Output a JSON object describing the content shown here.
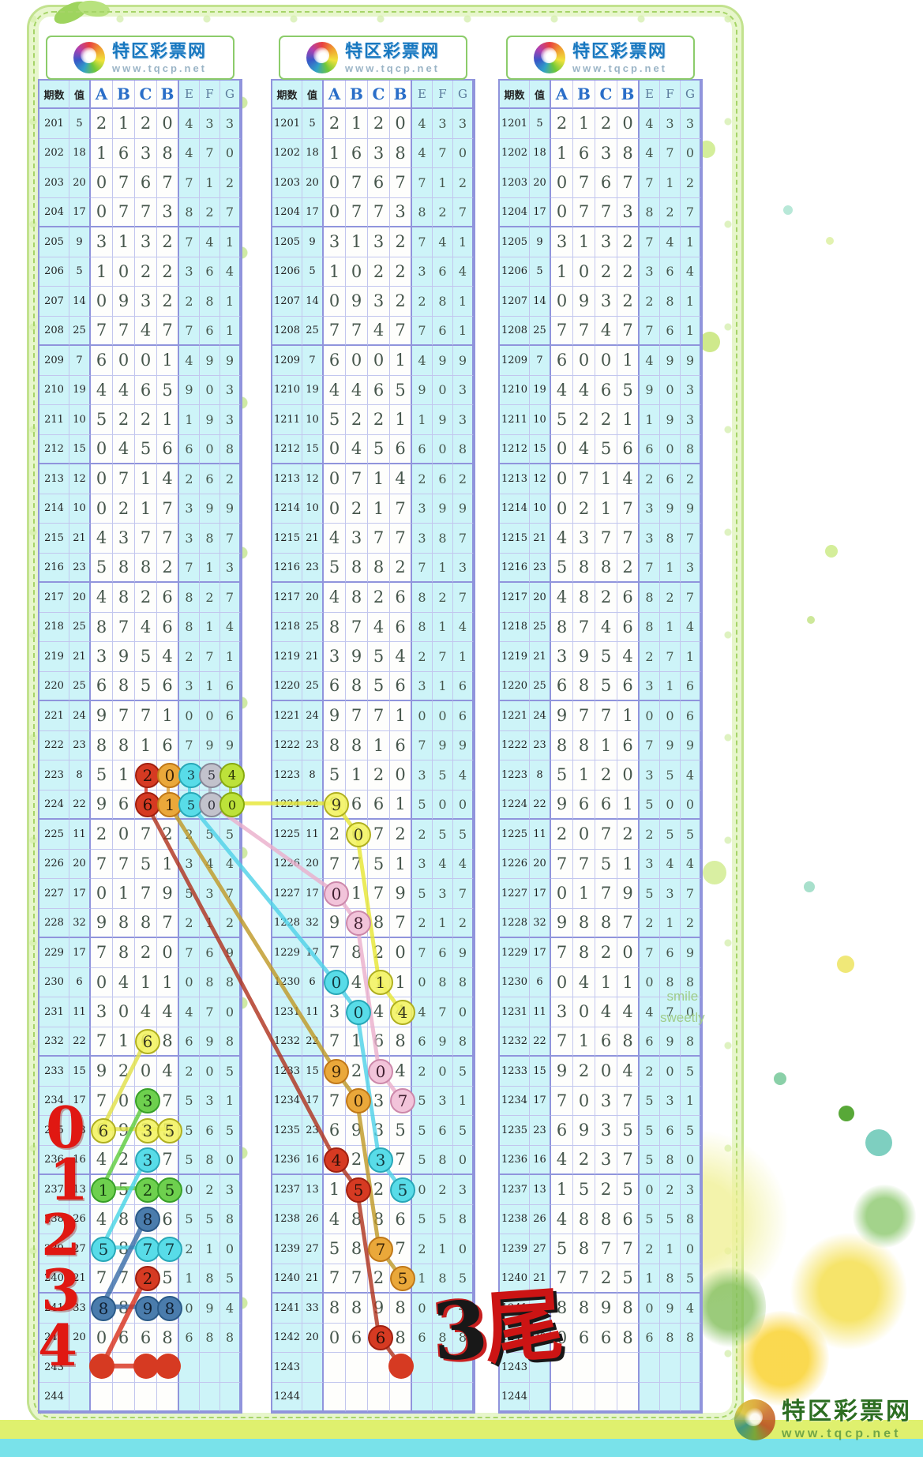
{
  "site": {
    "name": "特区彩票网",
    "url": "www.tqcp.net"
  },
  "decor": {
    "smile_line1": "smile",
    "smile_line2": "sweetly"
  },
  "footer": {
    "brand": "特区彩票网",
    "url": "www.tqcp.net"
  },
  "annotations": {
    "big_label": "3尾",
    "margin_digits": [
      "0",
      "1",
      "2",
      "3",
      "4"
    ]
  },
  "table": {
    "headers": [
      "期数",
      "值",
      "A",
      "B",
      "C",
      "B",
      "E",
      "F",
      "G"
    ],
    "panels": [
      {
        "start": 201
      },
      {
        "start": 1201
      },
      {
        "start": 1201
      }
    ],
    "rows": [
      {
        "v": "5",
        "c": [
          "2",
          "1",
          "2",
          "0",
          "4",
          "3",
          "3"
        ]
      },
      {
        "v": "18",
        "c": [
          "1",
          "6",
          "3",
          "8",
          "4",
          "7",
          "0"
        ]
      },
      {
        "v": "20",
        "c": [
          "0",
          "7",
          "6",
          "7",
          "7",
          "1",
          "2"
        ]
      },
      {
        "v": "17",
        "c": [
          "0",
          "7",
          "7",
          "3",
          "8",
          "2",
          "7"
        ]
      },
      {
        "v": "9",
        "c": [
          "3",
          "1",
          "3",
          "2",
          "7",
          "4",
          "1"
        ]
      },
      {
        "v": "5",
        "c": [
          "1",
          "0",
          "2",
          "2",
          "3",
          "6",
          "4"
        ]
      },
      {
        "v": "14",
        "c": [
          "0",
          "9",
          "3",
          "2",
          "2",
          "8",
          "1"
        ]
      },
      {
        "v": "25",
        "c": [
          "7",
          "7",
          "4",
          "7",
          "7",
          "6",
          "1"
        ]
      },
      {
        "v": "7",
        "c": [
          "6",
          "0",
          "0",
          "1",
          "4",
          "9",
          "9"
        ]
      },
      {
        "v": "19",
        "c": [
          "4",
          "4",
          "6",
          "5",
          "9",
          "0",
          "3"
        ]
      },
      {
        "v": "10",
        "c": [
          "5",
          "2",
          "2",
          "1",
          "1",
          "9",
          "3"
        ]
      },
      {
        "v": "15",
        "c": [
          "0",
          "4",
          "5",
          "6",
          "6",
          "0",
          "8"
        ]
      },
      {
        "v": "12",
        "c": [
          "0",
          "7",
          "1",
          "4",
          "2",
          "6",
          "2"
        ]
      },
      {
        "v": "10",
        "c": [
          "0",
          "2",
          "1",
          "7",
          "3",
          "9",
          "9"
        ]
      },
      {
        "v": "21",
        "c": [
          "4",
          "3",
          "7",
          "7",
          "3",
          "8",
          "7"
        ]
      },
      {
        "v": "23",
        "c": [
          "5",
          "8",
          "8",
          "2",
          "7",
          "1",
          "3"
        ]
      },
      {
        "v": "20",
        "c": [
          "4",
          "8",
          "2",
          "6",
          "8",
          "2",
          "7"
        ]
      },
      {
        "v": "25",
        "c": [
          "8",
          "7",
          "4",
          "6",
          "8",
          "1",
          "4"
        ]
      },
      {
        "v": "21",
        "c": [
          "3",
          "9",
          "5",
          "4",
          "2",
          "7",
          "1"
        ]
      },
      {
        "v": "25",
        "c": [
          "6",
          "8",
          "5",
          "6",
          "3",
          "1",
          "6"
        ]
      },
      {
        "v": "24",
        "c": [
          "9",
          "7",
          "7",
          "1",
          "0",
          "0",
          "6"
        ]
      },
      {
        "v": "23",
        "c": [
          "8",
          "8",
          "1",
          "6",
          "7",
          "9",
          "9"
        ]
      },
      {
        "v": "8",
        "c": [
          "5",
          "1",
          "2",
          "0",
          "3",
          "5",
          "4"
        ]
      },
      {
        "v": "22",
        "c": [
          "9",
          "6",
          "6",
          "1",
          "5",
          "0",
          "0"
        ]
      },
      {
        "v": "11",
        "c": [
          "2",
          "0",
          "7",
          "2",
          "2",
          "5",
          "5"
        ]
      },
      {
        "v": "20",
        "c": [
          "7",
          "7",
          "5",
          "1",
          "3",
          "4",
          "4"
        ]
      },
      {
        "v": "17",
        "c": [
          "0",
          "1",
          "7",
          "9",
          "5",
          "3",
          "7"
        ]
      },
      {
        "v": "32",
        "c": [
          "9",
          "8",
          "8",
          "7",
          "2",
          "1",
          "2"
        ]
      },
      {
        "v": "17",
        "c": [
          "7",
          "8",
          "2",
          "0",
          "7",
          "6",
          "9"
        ]
      },
      {
        "v": "6",
        "c": [
          "0",
          "4",
          "1",
          "1",
          "0",
          "8",
          "8"
        ]
      },
      {
        "v": "11",
        "c": [
          "3",
          "0",
          "4",
          "4",
          "4",
          "7",
          "0"
        ]
      },
      {
        "v": "22",
        "c": [
          "7",
          "1",
          "6",
          "8",
          "6",
          "9",
          "8"
        ]
      },
      {
        "v": "15",
        "c": [
          "9",
          "2",
          "0",
          "4",
          "2",
          "0",
          "5"
        ]
      },
      {
        "v": "17",
        "c": [
          "7",
          "0",
          "3",
          "7",
          "5",
          "3",
          "1"
        ]
      },
      {
        "v": "23",
        "c": [
          "6",
          "9",
          "3",
          "5",
          "5",
          "6",
          "5"
        ]
      },
      {
        "v": "16",
        "c": [
          "4",
          "2",
          "3",
          "7",
          "5",
          "8",
          "0"
        ]
      },
      {
        "v": "13",
        "c": [
          "1",
          "5",
          "2",
          "5",
          "0",
          "2",
          "3"
        ]
      },
      {
        "v": "26",
        "c": [
          "4",
          "8",
          "8",
          "6",
          "5",
          "5",
          "8"
        ]
      },
      {
        "v": "27",
        "c": [
          "5",
          "8",
          "7",
          "7",
          "2",
          "1",
          "0"
        ]
      },
      {
        "v": "21",
        "c": [
          "7",
          "7",
          "2",
          "5",
          "1",
          "8",
          "5"
        ]
      },
      {
        "v": "33",
        "c": [
          "8",
          "8",
          "9",
          "8",
          "0",
          "9",
          "4"
        ]
      },
      {
        "v": "20",
        "c": [
          "0",
          "6",
          "6",
          "8",
          "6",
          "8",
          "8"
        ]
      },
      {
        "v": "",
        "c": [
          "",
          "",
          "",
          "",
          "",
          "",
          ""
        ]
      },
      {
        "v": "",
        "c": [
          "",
          "",
          "",
          "",
          "",
          "",
          ""
        ]
      }
    ]
  },
  "palette": {
    "red": {
      "fill": "#d63a22",
      "border": "#a02010",
      "text": "#2a1008"
    },
    "orange": {
      "fill": "#eaa83a",
      "border": "#c07818",
      "text": "#3a2408"
    },
    "cyan": {
      "fill": "#58dce8",
      "border": "#28a8b8",
      "text": "#143a40"
    },
    "gray": {
      "fill": "#c2c2cc",
      "border": "#888898",
      "text": "#30303a"
    },
    "ygreen": {
      "fill": "#bde23a",
      "border": "#88aa10",
      "text": "#2a3408"
    },
    "yellow": {
      "fill": "rgba(242,242,96,0.88)",
      "border": "#b0b020",
      "text": "#3a3a20"
    },
    "green": {
      "fill": "#6ed04e",
      "border": "#38a028",
      "text": "#143a10"
    },
    "sblue": {
      "fill": "#4a7cac",
      "border": "#2a5a88",
      "text": "#101f30"
    },
    "pink": {
      "fill": "#f2c4da",
      "border": "#cc88aa",
      "text": "#402030"
    },
    "dot": {
      "fill": "#d63a22",
      "border": "#d63a22",
      "text": ""
    }
  },
  "circles": [
    {
      "panel": 0,
      "row": 22,
      "col": 4,
      "style": "red"
    },
    {
      "panel": 0,
      "row": 22,
      "col": 5,
      "style": "orange"
    },
    {
      "panel": 0,
      "row": 22,
      "col": 6,
      "style": "cyan"
    },
    {
      "panel": 0,
      "row": 22,
      "col": 7,
      "style": "gray"
    },
    {
      "panel": 0,
      "row": 22,
      "col": 8,
      "style": "ygreen"
    },
    {
      "panel": 0,
      "row": 23,
      "col": 4,
      "style": "red"
    },
    {
      "panel": 0,
      "row": 23,
      "col": 5,
      "style": "orange"
    },
    {
      "panel": 0,
      "row": 23,
      "col": 6,
      "style": "cyan"
    },
    {
      "panel": 0,
      "row": 23,
      "col": 7,
      "style": "gray"
    },
    {
      "panel": 0,
      "row": 23,
      "col": 8,
      "style": "ygreen"
    },
    {
      "panel": 0,
      "row": 31,
      "col": 4,
      "style": "yellow"
    },
    {
      "panel": 0,
      "row": 33,
      "col": 4,
      "style": "green"
    },
    {
      "panel": 0,
      "row": 34,
      "col": 2,
      "style": "yellow"
    },
    {
      "panel": 0,
      "row": 34,
      "col": 4,
      "style": "yellow"
    },
    {
      "panel": 0,
      "row": 34,
      "col": 5,
      "style": "yellow"
    },
    {
      "panel": 0,
      "row": 35,
      "col": 4,
      "style": "cyan"
    },
    {
      "panel": 0,
      "row": 36,
      "col": 2,
      "style": "green"
    },
    {
      "panel": 0,
      "row": 36,
      "col": 4,
      "style": "green"
    },
    {
      "panel": 0,
      "row": 36,
      "col": 5,
      "style": "green"
    },
    {
      "panel": 0,
      "row": 37,
      "col": 4,
      "style": "sblue"
    },
    {
      "panel": 0,
      "row": 38,
      "col": 2,
      "style": "cyan"
    },
    {
      "panel": 0,
      "row": 38,
      "col": 4,
      "style": "cyan"
    },
    {
      "panel": 0,
      "row": 38,
      "col": 5,
      "style": "cyan"
    },
    {
      "panel": 0,
      "row": 39,
      "col": 4,
      "style": "red"
    },
    {
      "panel": 0,
      "row": 40,
      "col": 2,
      "style": "sblue"
    },
    {
      "panel": 0,
      "row": 40,
      "col": 4,
      "style": "sblue"
    },
    {
      "panel": 0,
      "row": 40,
      "col": 5,
      "style": "sblue"
    },
    {
      "panel": 0,
      "row": 42,
      "col": 2,
      "style": "dot"
    },
    {
      "panel": 0,
      "row": 42,
      "col": 4,
      "style": "dot"
    },
    {
      "panel": 0,
      "row": 42,
      "col": 5,
      "style": "dot"
    },
    {
      "panel": 1,
      "row": 23,
      "col": 2,
      "style": "yellow"
    },
    {
      "panel": 1,
      "row": 24,
      "col": 3,
      "style": "yellow"
    },
    {
      "panel": 1,
      "row": 26,
      "col": 2,
      "style": "pink"
    },
    {
      "panel": 1,
      "row": 27,
      "col": 3,
      "style": "pink"
    },
    {
      "panel": 1,
      "row": 29,
      "col": 2,
      "style": "cyan"
    },
    {
      "panel": 1,
      "row": 29,
      "col": 4,
      "style": "yellow"
    },
    {
      "panel": 1,
      "row": 30,
      "col": 3,
      "style": "cyan"
    },
    {
      "panel": 1,
      "row": 30,
      "col": 5,
      "style": "yellow"
    },
    {
      "panel": 1,
      "row": 32,
      "col": 2,
      "style": "orange"
    },
    {
      "panel": 1,
      "row": 32,
      "col": 4,
      "style": "pink"
    },
    {
      "panel": 1,
      "row": 33,
      "col": 3,
      "style": "orange"
    },
    {
      "panel": 1,
      "row": 33,
      "col": 5,
      "style": "pink"
    },
    {
      "panel": 1,
      "row": 35,
      "col": 2,
      "style": "red"
    },
    {
      "panel": 1,
      "row": 35,
      "col": 4,
      "style": "cyan"
    },
    {
      "panel": 1,
      "row": 36,
      "col": 3,
      "style": "red"
    },
    {
      "panel": 1,
      "row": 36,
      "col": 5,
      "style": "cyan"
    },
    {
      "panel": 1,
      "row": 38,
      "col": 4,
      "style": "orange"
    },
    {
      "panel": 1,
      "row": 39,
      "col": 5,
      "style": "orange"
    },
    {
      "panel": 1,
      "row": 41,
      "col": 4,
      "style": "red"
    },
    {
      "panel": 1,
      "row": 42,
      "col": 5,
      "style": "dot"
    }
  ],
  "lines": [
    {
      "color": "#d8321e",
      "w": 4,
      "pts": [
        [
          0,
          22,
          4
        ],
        [
          0,
          23,
          4
        ]
      ]
    },
    {
      "color": "#e0a030",
      "w": 4,
      "pts": [
        [
          0,
          22,
          5
        ],
        [
          0,
          23,
          5
        ]
      ]
    },
    {
      "color": "#48d4e4",
      "w": 4,
      "pts": [
        [
          0,
          22,
          6
        ],
        [
          0,
          23,
          6
        ]
      ]
    },
    {
      "color": "#a8a8b4",
      "w": 4,
      "pts": [
        [
          0,
          22,
          7
        ],
        [
          0,
          23,
          7
        ]
      ]
    },
    {
      "color": "#a8d030",
      "w": 4,
      "pts": [
        [
          0,
          22,
          8
        ],
        [
          0,
          23,
          8
        ]
      ]
    },
    {
      "color": "#e0e048",
      "w": 5,
      "pts": [
        [
          0,
          31,
          4
        ],
        [
          0,
          34,
          2
        ],
        [
          0,
          34,
          4
        ],
        [
          0,
          34,
          5
        ]
      ]
    },
    {
      "color": "#5ecc3e",
      "w": 5,
      "pts": [
        [
          0,
          33,
          4
        ],
        [
          0,
          36,
          2
        ],
        [
          0,
          36,
          4
        ],
        [
          0,
          36,
          5
        ]
      ]
    },
    {
      "color": "#48d4e4",
      "w": 5,
      "pts": [
        [
          0,
          35,
          4
        ],
        [
          0,
          38,
          2
        ],
        [
          0,
          38,
          4
        ],
        [
          0,
          38,
          5
        ]
      ]
    },
    {
      "color": "#3a6ea8",
      "w": 6,
      "pts": [
        [
          0,
          37,
          4
        ],
        [
          0,
          40,
          2
        ],
        [
          0,
          40,
          4
        ],
        [
          0,
          40,
          5
        ]
      ]
    },
    {
      "color": "#d8321e",
      "w": 6,
      "pts": [
        [
          0,
          39,
          4
        ],
        [
          0,
          42,
          2
        ],
        [
          0,
          42,
          4
        ],
        [
          0,
          42,
          5
        ]
      ]
    },
    {
      "color": "#b03420",
      "w": 5,
      "pts": [
        [
          0,
          23,
          4
        ],
        [
          1,
          35,
          2
        ],
        [
          1,
          36,
          3
        ],
        [
          1,
          41,
          4
        ],
        [
          1,
          42,
          5
        ]
      ]
    },
    {
      "color": "#c09a28",
      "w": 5,
      "pts": [
        [
          0,
          23,
          5
        ],
        [
          1,
          32,
          2
        ],
        [
          1,
          33,
          3
        ],
        [
          1,
          38,
          4
        ],
        [
          1,
          39,
          5
        ]
      ]
    },
    {
      "color": "#50d2e8",
      "w": 5,
      "pts": [
        [
          0,
          23,
          6
        ],
        [
          1,
          29,
          2
        ],
        [
          1,
          30,
          3
        ],
        [
          1,
          35,
          4
        ],
        [
          1,
          36,
          5
        ]
      ]
    },
    {
      "color": "#eab0cc",
      "w": 5,
      "pts": [
        [
          0,
          23,
          7
        ],
        [
          1,
          26,
          2
        ],
        [
          1,
          27,
          3
        ],
        [
          1,
          32,
          4
        ],
        [
          1,
          33,
          5
        ]
      ]
    },
    {
      "color": "#e6e636",
      "w": 5,
      "pts": [
        [
          0,
          23,
          8
        ],
        [
          1,
          23,
          2
        ],
        [
          1,
          24,
          3
        ],
        [
          1,
          29,
          4
        ],
        [
          1,
          30,
          5
        ]
      ]
    }
  ]
}
